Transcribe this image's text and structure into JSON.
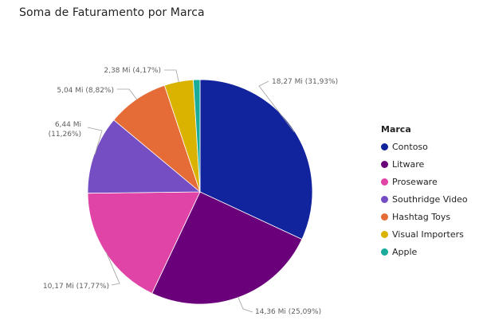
{
  "chart_data": {
    "type": "pie",
    "title": "Soma de Faturamento por Marca",
    "legend_title": "Marca",
    "legend_position": "right",
    "slices": [
      {
        "name": "Contoso",
        "value": 18.27,
        "percent": 31.93,
        "label": "18,27 Mi (31,93%)",
        "color": "#12239E"
      },
      {
        "name": "Litware",
        "value": 14.36,
        "percent": 25.09,
        "label": "14,36 Mi (25,09%)",
        "color": "#6B007B"
      },
      {
        "name": "Proseware",
        "value": 10.17,
        "percent": 17.77,
        "label": "10,17 Mi (17,77%)",
        "color": "#E044A7"
      },
      {
        "name": "Southridge Video",
        "value": 6.44,
        "percent": 11.26,
        "label": "6,44 Mi (11,26%)",
        "color": "#744EC2"
      },
      {
        "name": "Hashtag Toys",
        "value": 5.04,
        "percent": 8.82,
        "label": "5,04 Mi (8,82%)",
        "color": "#E66C37"
      },
      {
        "name": "Visual Importers",
        "value": 2.38,
        "percent": 4.17,
        "label": "2,38 Mi (4,17%)",
        "color": "#D9B300"
      },
      {
        "name": "Apple",
        "value": 0.55,
        "percent": 0.96,
        "label": "",
        "color": "#1AAB9B"
      }
    ]
  }
}
